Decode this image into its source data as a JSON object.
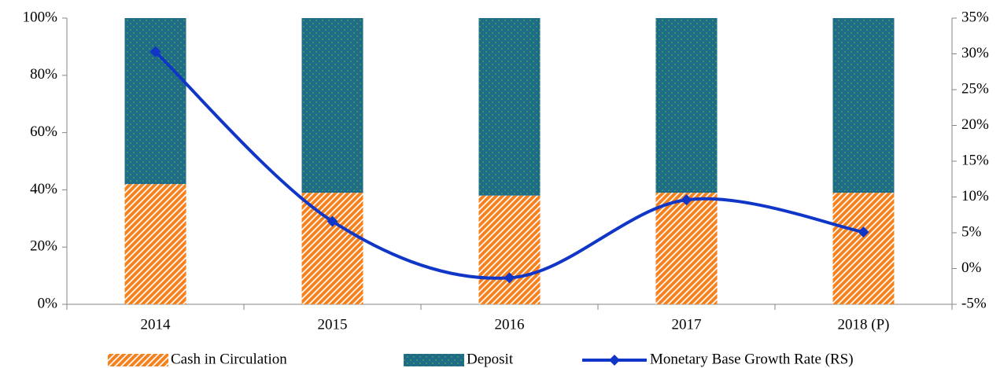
{
  "chart_data": {
    "type": "bar",
    "stacked": true,
    "categories": [
      "2014",
      "2015",
      "2016",
      "2017",
      "2018 (P)"
    ],
    "series": [
      {
        "name": "Cash in Circulation",
        "color": "#f58220",
        "values": [
          42,
          39,
          38,
          39,
          39
        ]
      },
      {
        "name": "Deposit",
        "color": "#1f6b88",
        "values": [
          58,
          61,
          62,
          61,
          61
        ]
      },
      {
        "name": "Monetary Base Growth Rate (RS)",
        "type": "line",
        "axis": "y2",
        "color": "#1036c8",
        "values": [
          30.3,
          6.6,
          -1.3,
          9.6,
          5.1
        ]
      }
    ],
    "ylim": [
      0,
      100
    ],
    "yticks": [
      {
        "value": 0,
        "label": "0%"
      },
      {
        "value": 20,
        "label": "20%"
      },
      {
        "value": 40,
        "label": "40%"
      },
      {
        "value": 60,
        "label": "60%"
      },
      {
        "value": 80,
        "label": "80%"
      },
      {
        "value": 100,
        "label": "100%"
      }
    ],
    "y2lim": [
      -5,
      35
    ],
    "y2ticks": [
      {
        "value": -5,
        "label": "-5%"
      },
      {
        "value": 0,
        "label": "0%"
      },
      {
        "value": 5,
        "label": "5%"
      },
      {
        "value": 10,
        "label": "10%"
      },
      {
        "value": 15,
        "label": "15%"
      },
      {
        "value": 20,
        "label": "20%"
      },
      {
        "value": 25,
        "label": "25%"
      },
      {
        "value": 30,
        "label": "30%"
      },
      {
        "value": 35,
        "label": "35%"
      }
    ],
    "grid": false,
    "legend": "bottom"
  }
}
